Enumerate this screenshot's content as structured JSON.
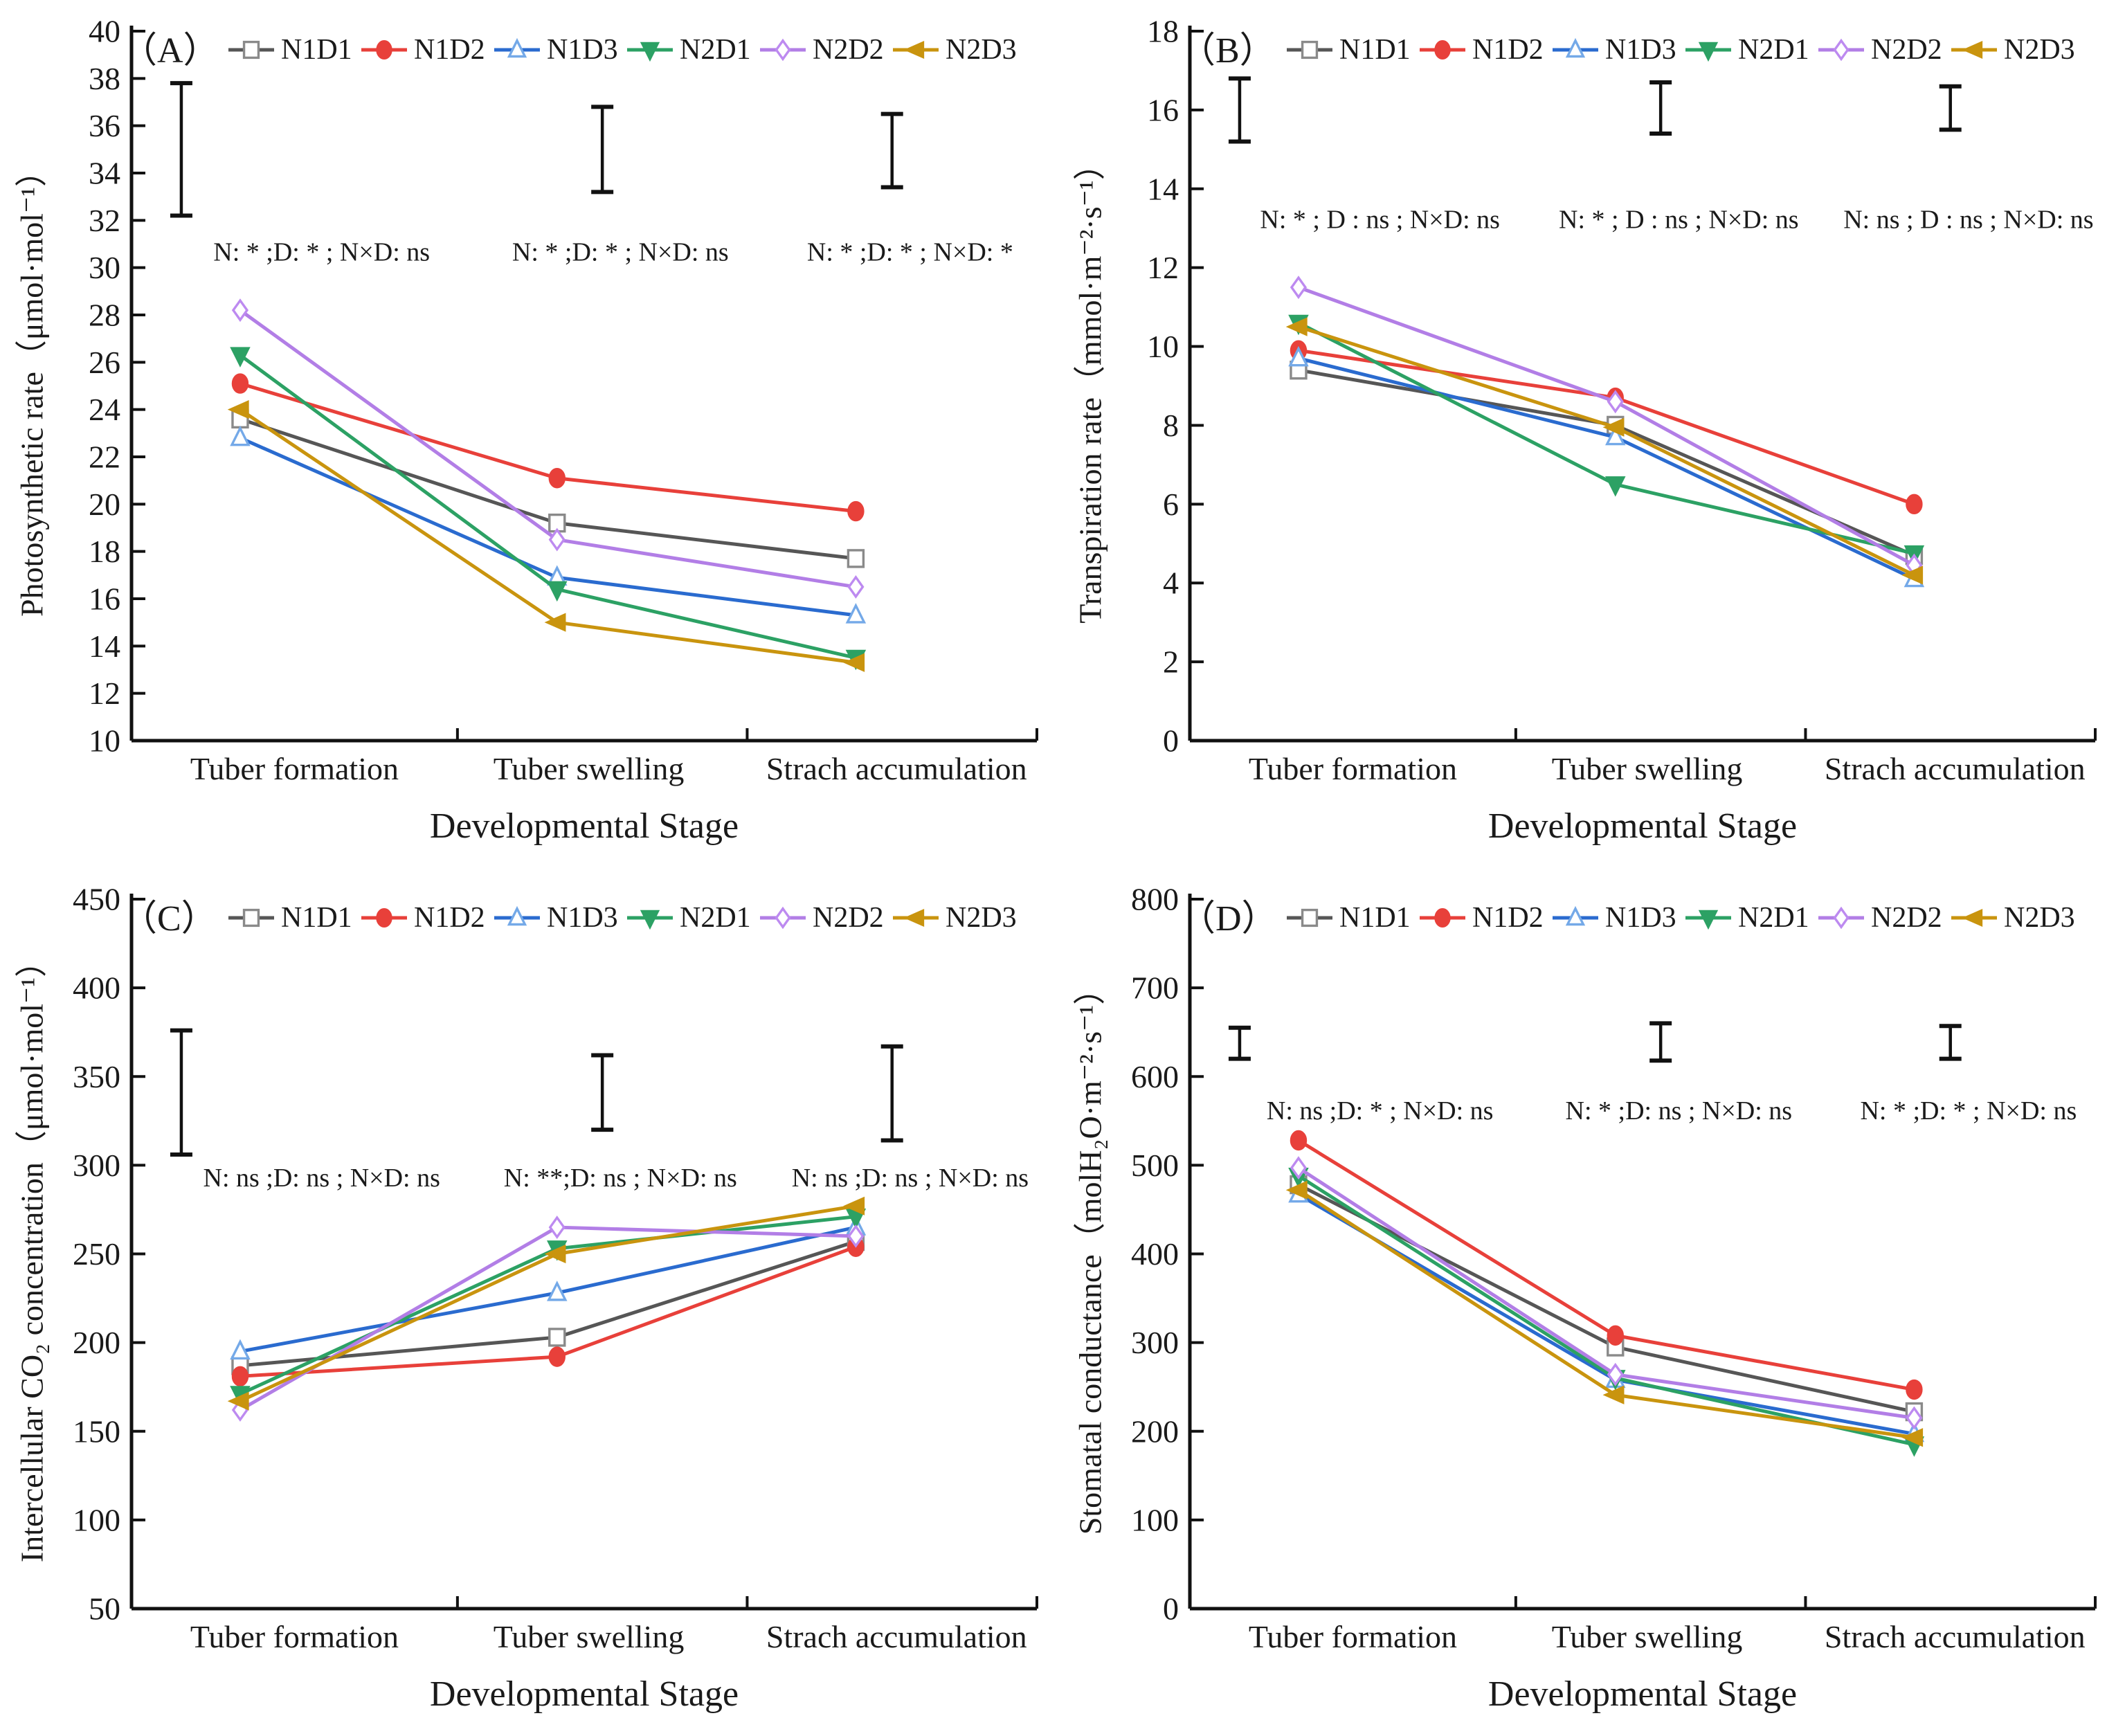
{
  "figure": {
    "x_axis_title": "Developmental  Stage",
    "categories": [
      "Tuber formation",
      "Tuber swelling",
      "Strach accumulation"
    ],
    "legend": {
      "items": [
        {
          "label": "N1D1",
          "line_color": "#565656",
          "marker": "square",
          "marker_fill": "#ffffff",
          "marker_stroke": "#8a8a8a",
          "filled": false
        },
        {
          "label": "N1D2",
          "line_color": "#e8403a",
          "marker": "ellipse",
          "marker_fill": "#e8403a",
          "marker_stroke": "#e8403a",
          "filled": true
        },
        {
          "label": "N1D3",
          "line_color": "#2a6bcf",
          "marker": "triangle-up",
          "marker_fill": "#ffffff",
          "marker_stroke": "#74a9e8",
          "filled": false
        },
        {
          "label": "N2D1",
          "line_color": "#2ca164",
          "marker": "triangle-down",
          "marker_fill": "#2ca164",
          "marker_stroke": "#2ca164",
          "filled": true
        },
        {
          "label": "N2D2",
          "line_color": "#b27ee6",
          "marker": "diamond",
          "marker_fill": "#ffffff",
          "marker_stroke": "#bd8af0",
          "filled": false
        },
        {
          "label": "N2D3",
          "line_color": "#c9940e",
          "marker": "triangle-left",
          "marker_fill": "#c9940e",
          "marker_stroke": "#c9940e",
          "filled": true
        }
      ]
    }
  },
  "chart_data": [
    {
      "type": "line",
      "panel_label": "（A）",
      "ylabel": "Photosynthetic rate（μmol·mol⁻¹）",
      "xlabel": "Developmental  Stage",
      "ylim": [
        10,
        40
      ],
      "ytick_step": 2,
      "grid": false,
      "legend_position": "top",
      "categories": [
        "Tuber formation",
        "Tuber swelling",
        "Strach accumulation"
      ],
      "series": [
        {
          "name": "N1D1",
          "values": [
            23.6,
            19.2,
            17.7
          ]
        },
        {
          "name": "N1D2",
          "values": [
            25.1,
            21.1,
            19.7
          ]
        },
        {
          "name": "N1D3",
          "values": [
            22.8,
            16.9,
            15.3
          ]
        },
        {
          "name": "N2D1",
          "values": [
            26.3,
            16.4,
            13.5
          ]
        },
        {
          "name": "N2D2",
          "values": [
            28.2,
            18.5,
            16.5
          ]
        },
        {
          "name": "N2D3",
          "values": [
            24.0,
            15.0,
            13.3
          ]
        }
      ],
      "error_bars": [
        {
          "low": 32.2,
          "high": 37.8
        },
        {
          "low": 33.2,
          "high": 36.8
        },
        {
          "low": 33.4,
          "high": 36.5
        }
      ],
      "annotations": [
        "N: * ;D: * ; N×D: ns",
        "N: * ;D: * ; N×D: ns",
        "N: * ;D: * ; N×D: *"
      ],
      "annotation_y_value": 30.3
    },
    {
      "type": "line",
      "panel_label": "（B）",
      "ylabel": "Transpiration rate（mmol·m⁻²·s⁻¹）",
      "xlabel": "Developmental  Stage",
      "ylim": [
        0,
        18
      ],
      "ytick_step": 2,
      "grid": false,
      "legend_position": "top",
      "categories": [
        "Tuber formation",
        "Tuber swelling",
        "Strach accumulation"
      ],
      "series": [
        {
          "name": "N1D1",
          "values": [
            9.4,
            8.0,
            4.7
          ]
        },
        {
          "name": "N1D2",
          "values": [
            9.9,
            8.7,
            6.0
          ]
        },
        {
          "name": "N1D3",
          "values": [
            9.7,
            7.7,
            4.1
          ]
        },
        {
          "name": "N2D1",
          "values": [
            10.6,
            6.5,
            4.75
          ]
        },
        {
          "name": "N2D2",
          "values": [
            11.5,
            8.6,
            4.45
          ]
        },
        {
          "name": "N2D3",
          "values": [
            10.5,
            7.95,
            4.2
          ]
        }
      ],
      "error_bars": [
        {
          "low": 15.2,
          "high": 16.8
        },
        {
          "low": 15.4,
          "high": 16.7
        },
        {
          "low": 15.5,
          "high": 16.6
        }
      ],
      "annotations": [
        "N: * ; D : ns ; N×D: ns",
        "N: * ; D : ns ; N×D: ns",
        "N: ns ; D : ns ; N×D: ns"
      ],
      "annotation_y_value": 13.0
    },
    {
      "type": "line",
      "panel_label": "（C）",
      "ylabel": "Intercellular CO₂ concentration（μmol·mol⁻¹）",
      "xlabel": "Developmental  Stage",
      "ylim": [
        50,
        450
      ],
      "ytick_step": 50,
      "grid": false,
      "legend_position": "top",
      "categories": [
        "Tuber formation",
        "Tuber swelling",
        "Strach accumulation"
      ],
      "series": [
        {
          "name": "N1D1",
          "values": [
            187,
            203,
            257
          ]
        },
        {
          "name": "N1D2",
          "values": [
            181,
            192,
            254
          ]
        },
        {
          "name": "N1D3",
          "values": [
            195,
            228,
            265
          ]
        },
        {
          "name": "N2D1",
          "values": [
            171,
            253,
            271
          ]
        },
        {
          "name": "N2D2",
          "values": [
            162,
            265,
            260
          ]
        },
        {
          "name": "N2D3",
          "values": [
            167,
            250,
            277
          ]
        }
      ],
      "error_bars": [
        {
          "low": 306,
          "high": 376
        },
        {
          "low": 320,
          "high": 362
        },
        {
          "low": 314,
          "high": 367
        }
      ],
      "annotations": [
        "N: ns ;D: ns ; N×D: ns",
        "N: **;D: ns ; N×D: ns",
        "N: ns ;D: ns ; N×D: ns"
      ],
      "annotation_y_value": 288
    },
    {
      "type": "line",
      "panel_label": "（D）",
      "ylabel": "Stomatal conductance（molH₂O·m⁻²·s⁻¹）",
      "xlabel": "Developmental  Stage",
      "ylim": [
        0,
        800
      ],
      "ytick_step": 100,
      "grid": false,
      "legend_position": "top",
      "categories": [
        "Tuber formation",
        "Tuber swelling",
        "Strach accumulation"
      ],
      "series": [
        {
          "name": "N1D1",
          "values": [
            478,
            295,
            222
          ]
        },
        {
          "name": "N1D2",
          "values": [
            528,
            308,
            247
          ]
        },
        {
          "name": "N1D3",
          "values": [
            467,
            258,
            197
          ]
        },
        {
          "name": "N2D1",
          "values": [
            488,
            260,
            185
          ]
        },
        {
          "name": "N2D2",
          "values": [
            497,
            264,
            215
          ]
        },
        {
          "name": "N2D3",
          "values": [
            472,
            241,
            193
          ]
        }
      ],
      "error_bars": [
        {
          "low": 620,
          "high": 655
        },
        {
          "low": 618,
          "high": 660
        },
        {
          "low": 620,
          "high": 657
        }
      ],
      "annotations": [
        "N: ns ;D: * ; N×D: ns",
        "N: * ;D: ns ; N×D: ns",
        "N: * ;D: * ; N×D: ns"
      ],
      "annotation_y_value": 552
    }
  ]
}
